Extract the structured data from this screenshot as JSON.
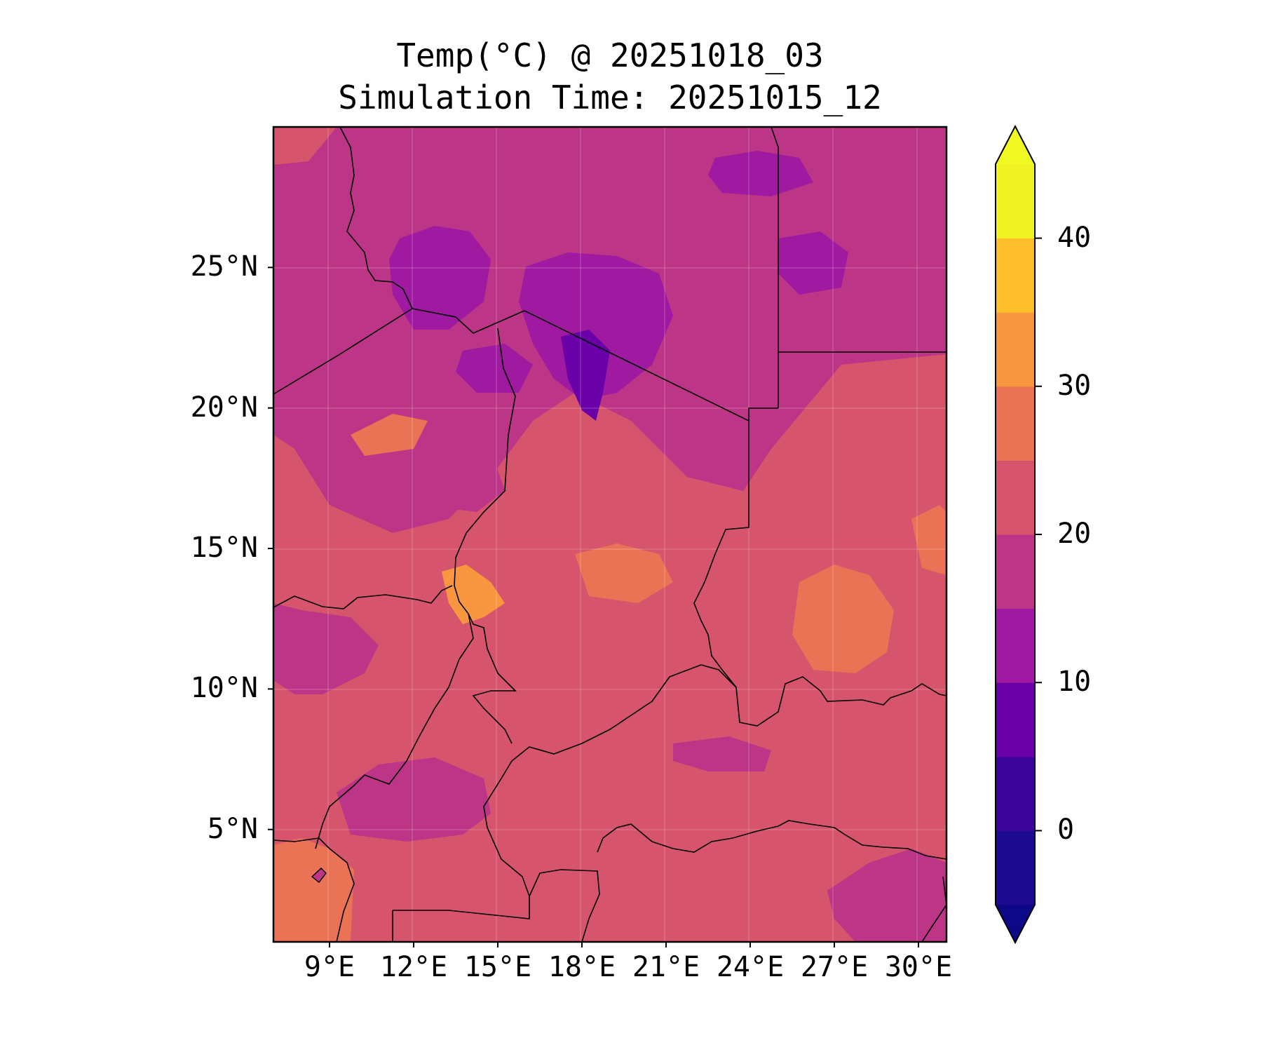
{
  "title": {
    "line1": "Temp(°C) @ 20251018_03",
    "line2": "Simulation Time: 20251015_12"
  },
  "map": {
    "lon_range": [
      7,
      31
    ],
    "lat_range": [
      1,
      30
    ],
    "lat_ticks": [
      {
        "value": 25,
        "label": "25°N"
      },
      {
        "value": 20,
        "label": "20°N"
      },
      {
        "value": 15,
        "label": "15°N"
      },
      {
        "value": 10,
        "label": "10°N"
      },
      {
        "value": 5,
        "label": "5°N"
      }
    ],
    "lon_ticks": [
      {
        "value": 9,
        "label": "9°E"
      },
      {
        "value": 12,
        "label": "12°E"
      },
      {
        "value": 15,
        "label": "15°E"
      },
      {
        "value": 18,
        "label": "18°E"
      },
      {
        "value": 21,
        "label": "21°E"
      },
      {
        "value": 24,
        "label": "24°E"
      },
      {
        "value": 27,
        "label": "27°E"
      },
      {
        "value": 30,
        "label": "30°E"
      }
    ],
    "field_description": "Near-surface temperature, mostly 20–25°C over the Sahel and central Africa, 15–20°C over the Sahara, 10–15°C pockets in the Tibesti/southern Libya, 25–35°C hot spots near Lake Chad and Darfur/Kordofan"
  },
  "colorbar": {
    "levels": [
      -5,
      0,
      5,
      10,
      15,
      20,
      25,
      30,
      35,
      40,
      45
    ],
    "colors": [
      "#1c0b8e",
      "#3d049b",
      "#6a00a8",
      "#9f19a1",
      "#bc3587",
      "#d6546c",
      "#ea7356",
      "#f89740",
      "#fdbf2b",
      "#f0f321"
    ],
    "under_color": "#0d0887",
    "over_color": "#f0f921",
    "ticks": [
      {
        "value": 0,
        "label": "0"
      },
      {
        "value": 10,
        "label": "10"
      },
      {
        "value": 20,
        "label": "20"
      },
      {
        "value": 30,
        "label": "30"
      },
      {
        "value": 40,
        "label": "40"
      }
    ],
    "extend": "both"
  },
  "colors": {
    "base": "#d6546c",
    "cool": "#bc3587",
    "colder": "#9f19a1",
    "coldest": "#6a00a8",
    "warm": "#ea7356",
    "hot": "#f89740",
    "border": "#000000"
  }
}
